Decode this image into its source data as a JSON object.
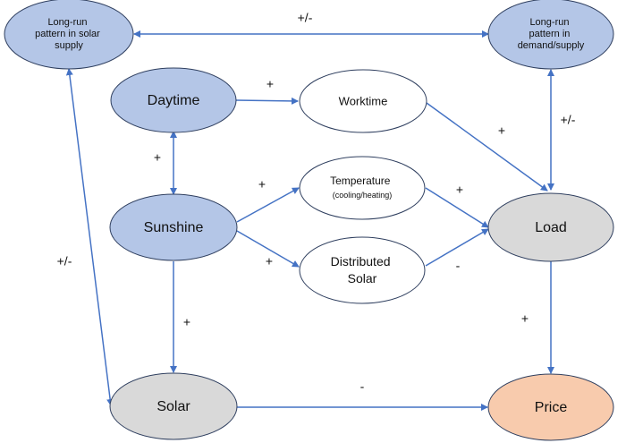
{
  "nodes": {
    "longrun_solar": {
      "lines": [
        "Long-run",
        "pattern in solar",
        "supply"
      ]
    },
    "longrun_demand": {
      "lines": [
        "Long-run",
        "pattern in",
        "demand/supply"
      ]
    },
    "daytime": {
      "lines": [
        "Daytime"
      ]
    },
    "worktime": {
      "lines": [
        "Worktime"
      ]
    },
    "sunshine": {
      "lines": [
        "Sunshine"
      ]
    },
    "temperature": {
      "lines": [
        "Temperature",
        "(cooling/heating)"
      ]
    },
    "distributed_solar": {
      "lines": [
        "Distributed",
        "Solar"
      ]
    },
    "load": {
      "lines": [
        "Load"
      ]
    },
    "solar": {
      "lines": [
        "Solar"
      ]
    },
    "price": {
      "lines": [
        "Price"
      ]
    }
  },
  "edges": {
    "solar_demand": "+/-",
    "daytime_worktime": "+",
    "worktime_load": "+",
    "demand_load": "+/-",
    "daytime_sunshine": "+",
    "sunshine_temperature": "+",
    "temperature_load": "+",
    "sunshine_distributed": "+",
    "distributed_load": "-",
    "longrun_solar_solar": "+/-",
    "sunshine_solar": "+",
    "load_price": "+",
    "solar_price": "-"
  },
  "colors": {
    "blue_fill": "#b4c6e7",
    "gray_fill": "#d9d9d9",
    "orange_fill": "#f8cbad",
    "white_fill": "#ffffff",
    "node_stroke": "#2f3f5f",
    "arrow": "#4472c4"
  }
}
